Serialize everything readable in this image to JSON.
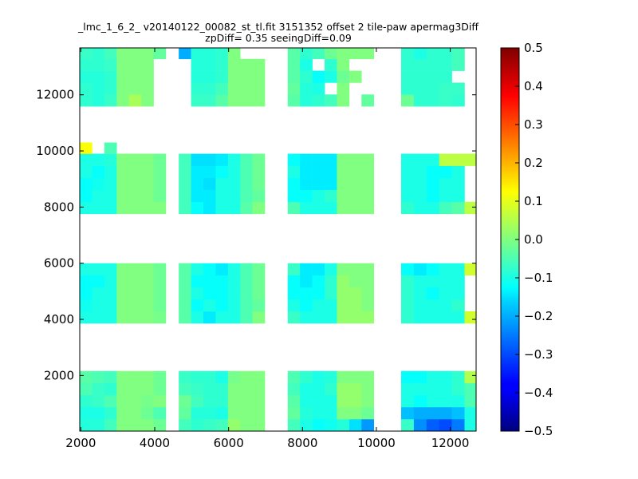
{
  "chart_data": {
    "type": "heatmap",
    "title_line1": "_lmc_1_6_2_ v20140122_00082_st_tl.fit 3151352 offset 2 tile-paw apermag3Diff",
    "title_line2": "zpDiff= 0.35 seeingDiff=0.09",
    "xlabel": "",
    "ylabel": "",
    "xlim": [
      1970,
      12700
    ],
    "ylim": [
      20,
      13670
    ],
    "xticks": [
      2000,
      4000,
      6000,
      8000,
      10000,
      12000
    ],
    "xtick_labels": [
      "2000",
      "4000",
      "6000",
      "8000",
      "10000",
      "12000"
    ],
    "yticks": [
      2000,
      4000,
      6000,
      8000,
      10000,
      12000
    ],
    "ytick_labels": [
      "2000",
      "4000",
      "6000",
      "8000",
      "10000",
      "12000"
    ],
    "colorbar": {
      "colormap": "jet",
      "range": [
        -0.5,
        0.5
      ],
      "ticks": [
        0.5,
        0.4,
        0.3,
        0.2,
        0.1,
        0.0,
        -0.1,
        -0.2,
        -0.3,
        -0.4,
        -0.5
      ],
      "tick_labels": [
        "0.5",
        "0.4",
        "0.3",
        "0.2",
        "0.1",
        "0.0",
        "−0.1",
        "−0.2",
        "−0.3",
        "−0.4",
        "−0.5"
      ]
    },
    "grid": false,
    "cell_size": [
      330,
      400
    ],
    "tiles": [
      {
        "x": [
          1970,
          4300
        ],
        "y": [
          20,
          2160
        ],
        "values": [
          [
            -0.09,
            -0.09,
            -0.06,
            0.0,
            0.0,
            0.0,
            -0.02
          ],
          [
            -0.1,
            -0.1,
            -0.08,
            0.0,
            0.0,
            -0.02,
            -0.05
          ],
          [
            -0.08,
            -0.07,
            -0.05,
            0.0,
            0.0,
            -0.01,
            0.0
          ],
          [
            -0.05,
            -0.07,
            -0.08,
            0.0,
            0.0,
            0.0,
            -0.02
          ],
          [
            -0.04,
            -0.05,
            -0.06,
            0.0,
            0.0,
            0.0,
            -0.02
          ]
        ]
      },
      {
        "x": [
          4650,
          6980
        ],
        "y": [
          20,
          2160
        ],
        "values": [
          [
            -0.06,
            -0.08,
            -0.07,
            -0.06,
            0.02,
            0.0,
            0.0
          ],
          [
            -0.03,
            -0.09,
            -0.09,
            -0.1,
            0.0,
            0.0,
            0.0
          ],
          [
            -0.02,
            -0.06,
            -0.08,
            -0.08,
            0.0,
            0.0,
            0.0
          ],
          [
            -0.06,
            -0.07,
            -0.08,
            -0.08,
            0.0,
            0.0,
            0.0
          ],
          [
            -0.07,
            -0.08,
            -0.08,
            -0.1,
            -0.01,
            0.0,
            0.0
          ]
        ]
      },
      {
        "x": [
          7600,
          9930
        ],
        "y": [
          20,
          2160
        ],
        "values": [
          [
            -0.06,
            -0.1,
            -0.12,
            -0.11,
            -0.09,
            -0.15,
            -0.22
          ],
          [
            -0.03,
            -0.09,
            -0.1,
            -0.1,
            0.0,
            0.0,
            -0.02
          ],
          [
            -0.04,
            -0.1,
            -0.1,
            -0.1,
            0.02,
            0.02,
            0.0
          ],
          [
            -0.06,
            -0.1,
            -0.1,
            -0.08,
            0.02,
            0.02,
            0.0
          ],
          [
            -0.05,
            -0.08,
            -0.1,
            -0.09,
            0.0,
            0.0,
            0.0
          ]
        ]
      },
      {
        "x": [
          10670,
          12730
        ],
        "y": [
          20,
          2160
        ],
        "values": [
          [
            -0.07,
            -0.23,
            -0.28,
            -0.3,
            -0.25,
            -0.1
          ],
          [
            -0.18,
            -0.2,
            -0.2,
            -0.2,
            -0.18,
            -0.1
          ],
          [
            -0.1,
            -0.12,
            -0.1,
            -0.1,
            -0.1,
            -0.05
          ],
          [
            -0.1,
            -0.1,
            -0.1,
            -0.1,
            -0.08,
            -0.05
          ],
          [
            -0.12,
            -0.12,
            -0.1,
            -0.1,
            -0.08,
            0.05
          ]
        ]
      },
      {
        "x": [
          1970,
          4300
        ],
        "y": [
          3860,
          6000
        ],
        "values": [
          [
            -0.1,
            -0.1,
            -0.1,
            0.0,
            0.0,
            0.0,
            -0.01
          ],
          [
            -0.11,
            -0.1,
            -0.1,
            0.0,
            0.0,
            0.0,
            -0.02
          ],
          [
            -0.12,
            -0.1,
            -0.1,
            0.0,
            0.0,
            0.0,
            -0.02
          ],
          [
            -0.12,
            -0.12,
            -0.1,
            0.0,
            0.0,
            0.0,
            -0.02
          ],
          [
            -0.1,
            -0.1,
            -0.1,
            0.0,
            0.0,
            0.0,
            -0.02
          ]
        ]
      },
      {
        "x": [
          4650,
          6980
        ],
        "y": [
          3860,
          6000
        ],
        "values": [
          [
            -0.04,
            -0.1,
            -0.14,
            -0.1,
            -0.1,
            -0.05,
            0.0
          ],
          [
            -0.04,
            -0.12,
            -0.1,
            -0.12,
            -0.1,
            -0.05,
            -0.03
          ],
          [
            -0.04,
            -0.1,
            -0.12,
            -0.12,
            -0.1,
            -0.05,
            -0.02
          ],
          [
            -0.04,
            -0.12,
            -0.12,
            -0.12,
            -0.1,
            -0.05,
            -0.02
          ],
          [
            -0.04,
            -0.1,
            -0.12,
            -0.14,
            -0.1,
            -0.05,
            -0.02
          ]
        ]
      },
      {
        "x": [
          7600,
          9930
        ],
        "y": [
          3860,
          6000
        ],
        "values": [
          [
            -0.07,
            -0.1,
            -0.1,
            -0.1,
            0.02,
            0.02,
            0.02
          ],
          [
            -0.1,
            -0.12,
            -0.1,
            -0.1,
            0.02,
            0.02,
            0.0
          ],
          [
            -0.12,
            -0.12,
            -0.12,
            -0.08,
            0.02,
            0.02,
            0.0
          ],
          [
            -0.12,
            -0.14,
            -0.12,
            -0.08,
            0.02,
            0.0,
            0.0
          ],
          [
            -0.07,
            -0.14,
            -0.14,
            -0.1,
            0.0,
            0.0,
            0.0
          ]
        ]
      },
      {
        "x": [
          10670,
          12730
        ],
        "y": [
          3860,
          6000
        ],
        "values": [
          [
            -0.08,
            -0.1,
            -0.1,
            -0.1,
            -0.1,
            0.08
          ],
          [
            -0.08,
            -0.1,
            -0.1,
            -0.1,
            -0.08,
            null
          ],
          [
            -0.08,
            -0.1,
            -0.12,
            -0.1,
            -0.1,
            null
          ],
          [
            -0.08,
            -0.1,
            -0.1,
            -0.1,
            -0.1,
            null
          ],
          [
            -0.12,
            -0.14,
            -0.12,
            -0.1,
            -0.1,
            0.08
          ]
        ]
      },
      {
        "x": [
          1970,
          4300
        ],
        "y": [
          7760,
          9900
        ],
        "values": [
          [
            -0.1,
            -0.1,
            -0.1,
            0.0,
            0.0,
            0.0,
            0.0
          ],
          [
            -0.12,
            -0.1,
            -0.1,
            0.0,
            0.0,
            0.0,
            -0.02
          ],
          [
            -0.12,
            -0.11,
            -0.1,
            0.0,
            0.0,
            0.0,
            -0.02
          ],
          [
            -0.1,
            -0.12,
            -0.1,
            0.0,
            0.0,
            0.0,
            -0.02
          ],
          [
            -0.1,
            -0.1,
            -0.09,
            0.0,
            0.0,
            0.0,
            -0.02
          ]
        ]
      },
      {
        "x": [
          4650,
          6980
        ],
        "y": [
          7760,
          9900
        ],
        "values": [
          [
            -0.06,
            -0.12,
            -0.14,
            -0.1,
            -0.1,
            -0.04,
            0.0
          ],
          [
            -0.06,
            -0.14,
            -0.14,
            -0.1,
            -0.1,
            -0.05,
            -0.03
          ],
          [
            -0.06,
            -0.14,
            -0.15,
            -0.1,
            -0.1,
            -0.05,
            -0.02
          ],
          [
            -0.06,
            -0.14,
            -0.14,
            -0.12,
            -0.1,
            -0.05,
            -0.02
          ],
          [
            -0.06,
            -0.15,
            -0.15,
            -0.14,
            -0.1,
            -0.05,
            -0.02
          ]
        ]
      },
      {
        "x": [
          7600,
          9930
        ],
        "y": [
          7760,
          9900
        ],
        "values": [
          [
            -0.05,
            -0.1,
            -0.1,
            -0.1,
            0.0,
            0.0,
            0.0
          ],
          [
            -0.12,
            -0.12,
            -0.1,
            -0.08,
            0.0,
            0.0,
            0.0
          ],
          [
            -0.12,
            -0.14,
            -0.14,
            -0.14,
            0.0,
            0.0,
            0.0
          ],
          [
            -0.1,
            -0.14,
            -0.14,
            -0.14,
            0.0,
            0.0,
            0.0
          ],
          [
            -0.12,
            -0.14,
            -0.14,
            -0.14,
            0.0,
            0.0,
            0.0
          ]
        ]
      },
      {
        "x": [
          10670,
          12730
        ],
        "y": [
          7760,
          9900
        ],
        "values": [
          [
            -0.08,
            -0.1,
            -0.1,
            -0.06,
            -0.04,
            0.06
          ],
          [
            -0.1,
            -0.1,
            -0.12,
            -0.1,
            -0.1,
            null
          ],
          [
            -0.1,
            -0.1,
            -0.12,
            -0.1,
            -0.1,
            null
          ],
          [
            -0.1,
            -0.1,
            -0.12,
            -0.12,
            -0.1,
            null
          ],
          [
            -0.1,
            -0.1,
            -0.1,
            0.06,
            0.06,
            0.06
          ]
        ]
      },
      {
        "x": [
          1970,
          4300
        ],
        "y": [
          9900,
          10300
        ],
        "values": [
          [
            0.12,
            null,
            -0.05,
            null,
            null,
            null,
            null
          ]
        ]
      },
      {
        "x": [
          1970,
          4300
        ],
        "y": [
          11590,
          13700
        ],
        "values": [
          [
            -0.08,
            -0.09,
            -0.07,
            0.0,
            0.04,
            0.0,
            null
          ],
          [
            -0.08,
            -0.09,
            -0.08,
            0.0,
            0.0,
            0.0,
            null
          ],
          [
            -0.09,
            -0.09,
            -0.08,
            0.0,
            0.0,
            0.0,
            null
          ],
          [
            -0.08,
            -0.08,
            -0.07,
            0.0,
            0.0,
            0.0,
            null
          ],
          [
            -0.07,
            -0.08,
            -0.06,
            0.0,
            0.0,
            0.0,
            -0.03
          ]
        ]
      },
      {
        "x": [
          4650,
          6980
        ],
        "y": [
          11590,
          13700
        ],
        "values": [
          [
            null,
            -0.07,
            -0.07,
            -0.04,
            0.0,
            0.0,
            0.0
          ],
          [
            null,
            -0.08,
            -0.08,
            -0.06,
            0.0,
            0.0,
            0.0
          ],
          [
            null,
            -0.09,
            -0.09,
            -0.08,
            0.0,
            0.0,
            0.0
          ],
          [
            null,
            -0.09,
            -0.09,
            -0.08,
            0.0,
            0.0,
            0.0
          ],
          [
            -0.2,
            -0.09,
            -0.09,
            -0.08,
            0.0,
            null,
            null
          ]
        ]
      },
      {
        "x": [
          7600,
          9930
        ],
        "y": [
          11590,
          13700
        ],
        "values": [
          [
            -0.04,
            -0.09,
            -0.08,
            -0.06,
            0.0,
            null,
            -0.03
          ],
          [
            -0.03,
            -0.09,
            -0.1,
            null,
            0.0,
            null,
            null
          ],
          [
            -0.04,
            -0.08,
            -0.12,
            -0.1,
            -0.02,
            0.0,
            null
          ],
          [
            -0.04,
            -0.1,
            null,
            -0.08,
            0.0,
            null,
            null
          ],
          [
            -0.04,
            -0.08,
            -0.06,
            -0.02,
            0.0,
            0.0,
            0.0
          ]
        ]
      },
      {
        "x": [
          10670,
          12730
        ],
        "y": [
          11590,
          13700
        ],
        "values": [
          [
            -0.02,
            -0.08,
            -0.08,
            -0.07,
            -0.08,
            null
          ],
          [
            -0.08,
            -0.08,
            -0.08,
            -0.07,
            -0.07,
            null
          ],
          [
            -0.08,
            -0.08,
            -0.08,
            -0.08,
            null,
            null
          ],
          [
            -0.08,
            -0.08,
            -0.08,
            -0.08,
            -0.06,
            null
          ],
          [
            -0.08,
            -0.1,
            -0.08,
            -0.08,
            -0.06,
            null
          ]
        ]
      }
    ]
  }
}
